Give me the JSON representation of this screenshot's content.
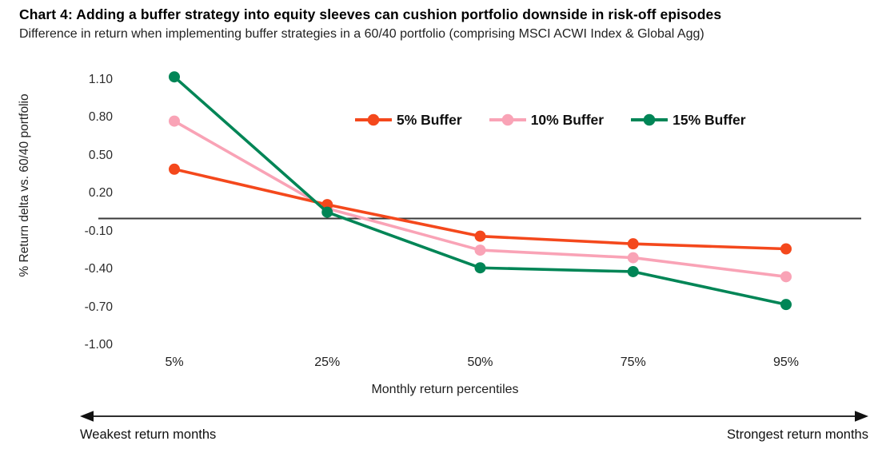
{
  "chart_data": {
    "type": "line",
    "title": "Chart 4: Adding a buffer strategy into equity sleeves can cushion portfolio downside in risk-off episodes",
    "subtitle": "Difference in return when implementing buffer strategies in a 60/40 portfolio (comprising MSCI ACWI Index & Global Agg)",
    "categories": [
      "5%",
      "25%",
      "50%",
      "75%",
      "95%"
    ],
    "series": [
      {
        "name": "5% Buffer",
        "color": "#F4481C",
        "values": [
          0.39,
          0.11,
          -0.14,
          -0.2,
          -0.24
        ]
      },
      {
        "name": "10% Buffer",
        "color": "#F9A3B6",
        "values": [
          0.77,
          0.08,
          -0.25,
          -0.31,
          -0.46
        ]
      },
      {
        "name": "15% Buffer",
        "color": "#008556",
        "values": [
          1.12,
          0.05,
          -0.39,
          -0.42,
          -0.68
        ]
      }
    ],
    "xlabel": "Monthly return percentiles",
    "ylabel": "% Return delta vs. 60/40 portfolio",
    "y_tick_labels": [
      "1.10",
      "0.80",
      "0.50",
      "0.20",
      "-0.10",
      "-0.40",
      "-0.70",
      "-1.00"
    ],
    "ylim": [
      -1.15,
      1.25
    ],
    "zero_line": true,
    "grid": false,
    "legend_position": "top-center",
    "footer_axis": {
      "left_label": "Weakest return months",
      "right_label": "Strongest return months"
    },
    "colors": {
      "zero_line": "#3A3A3A",
      "arrow": "#111111"
    }
  }
}
